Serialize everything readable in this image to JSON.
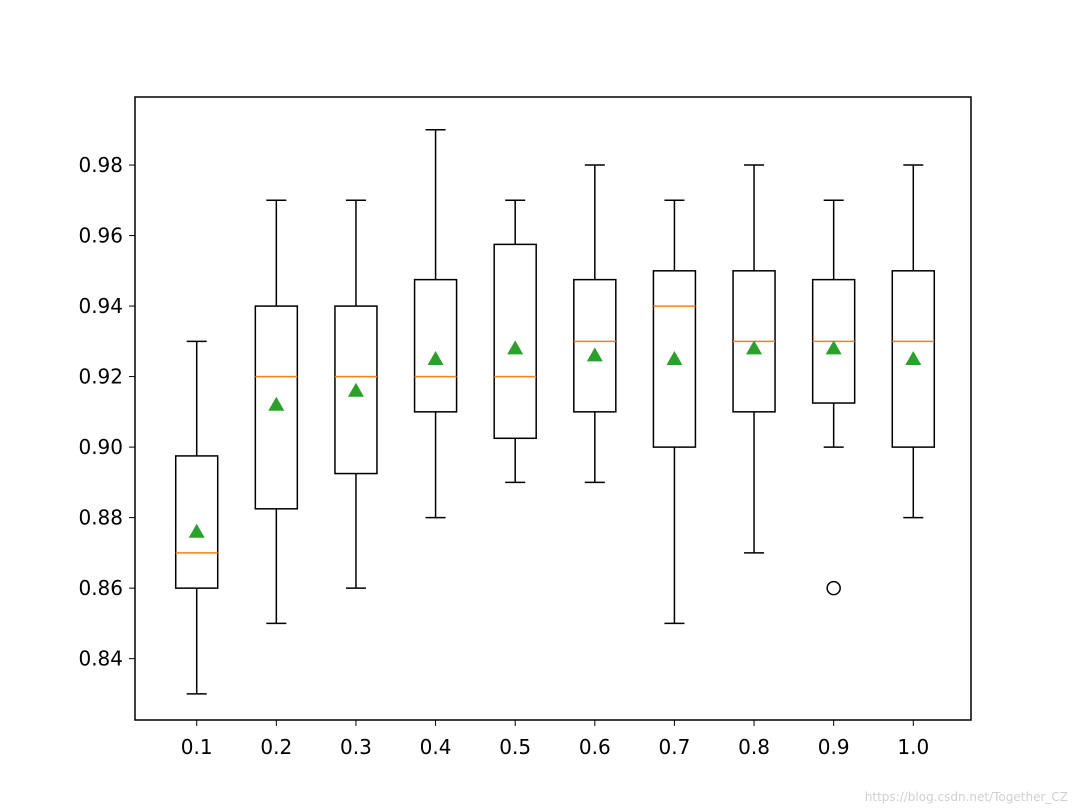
{
  "chart_data": {
    "type": "boxplot",
    "title": "",
    "xlabel": "",
    "ylabel": "",
    "categories": [
      "0.1",
      "0.2",
      "0.3",
      "0.4",
      "0.5",
      "0.6",
      "0.7",
      "0.8",
      "0.9",
      "1.0"
    ],
    "ylim": [
      0.8226,
      0.9993
    ],
    "yticks": [
      0.84,
      0.86,
      0.88,
      0.9,
      0.92,
      0.94,
      0.96,
      0.98
    ],
    "ytick_labels": [
      "0.84",
      "0.86",
      "0.88",
      "0.90",
      "0.92",
      "0.94",
      "0.96",
      "0.98"
    ],
    "grid": false,
    "boxes": [
      {
        "category": "0.1",
        "whisker_low": 0.83,
        "q1": 0.86,
        "median": 0.87,
        "q3": 0.8975,
        "whisker_high": 0.93,
        "mean": 0.876,
        "outliers": []
      },
      {
        "category": "0.2",
        "whisker_low": 0.85,
        "q1": 0.8825,
        "median": 0.92,
        "q3": 0.94,
        "whisker_high": 0.97,
        "mean": 0.912,
        "outliers": []
      },
      {
        "category": "0.3",
        "whisker_low": 0.86,
        "q1": 0.8925,
        "median": 0.92,
        "q3": 0.94,
        "whisker_high": 0.97,
        "mean": 0.916,
        "outliers": []
      },
      {
        "category": "0.4",
        "whisker_low": 0.88,
        "q1": 0.91,
        "median": 0.92,
        "q3": 0.9475,
        "whisker_high": 0.99,
        "mean": 0.925,
        "outliers": []
      },
      {
        "category": "0.5",
        "whisker_low": 0.89,
        "q1": 0.9025,
        "median": 0.92,
        "q3": 0.9575,
        "whisker_high": 0.97,
        "mean": 0.928,
        "outliers": []
      },
      {
        "category": "0.6",
        "whisker_low": 0.89,
        "q1": 0.91,
        "median": 0.93,
        "q3": 0.9475,
        "whisker_high": 0.98,
        "mean": 0.926,
        "outliers": []
      },
      {
        "category": "0.7",
        "whisker_low": 0.85,
        "q1": 0.9,
        "median": 0.94,
        "q3": 0.95,
        "whisker_high": 0.97,
        "mean": 0.925,
        "outliers": []
      },
      {
        "category": "0.8",
        "whisker_low": 0.87,
        "q1": 0.91,
        "median": 0.93,
        "q3": 0.95,
        "whisker_high": 0.98,
        "mean": 0.928,
        "outliers": []
      },
      {
        "category": "0.9",
        "whisker_low": 0.9,
        "q1": 0.9125,
        "median": 0.93,
        "q3": 0.9475,
        "whisker_high": 0.97,
        "mean": 0.928,
        "outliers": [
          0.86
        ]
      },
      {
        "category": "1.0",
        "whisker_low": 0.88,
        "q1": 0.9,
        "median": 0.93,
        "q3": 0.95,
        "whisker_high": 0.98,
        "mean": 0.925,
        "outliers": []
      }
    ],
    "colors": {
      "box": "#000000",
      "median": "#ff7f0e",
      "mean_marker": "#2ca02c",
      "outlier": "#000000"
    }
  },
  "watermark": "https://blog.csdn.net/Together_CZ"
}
